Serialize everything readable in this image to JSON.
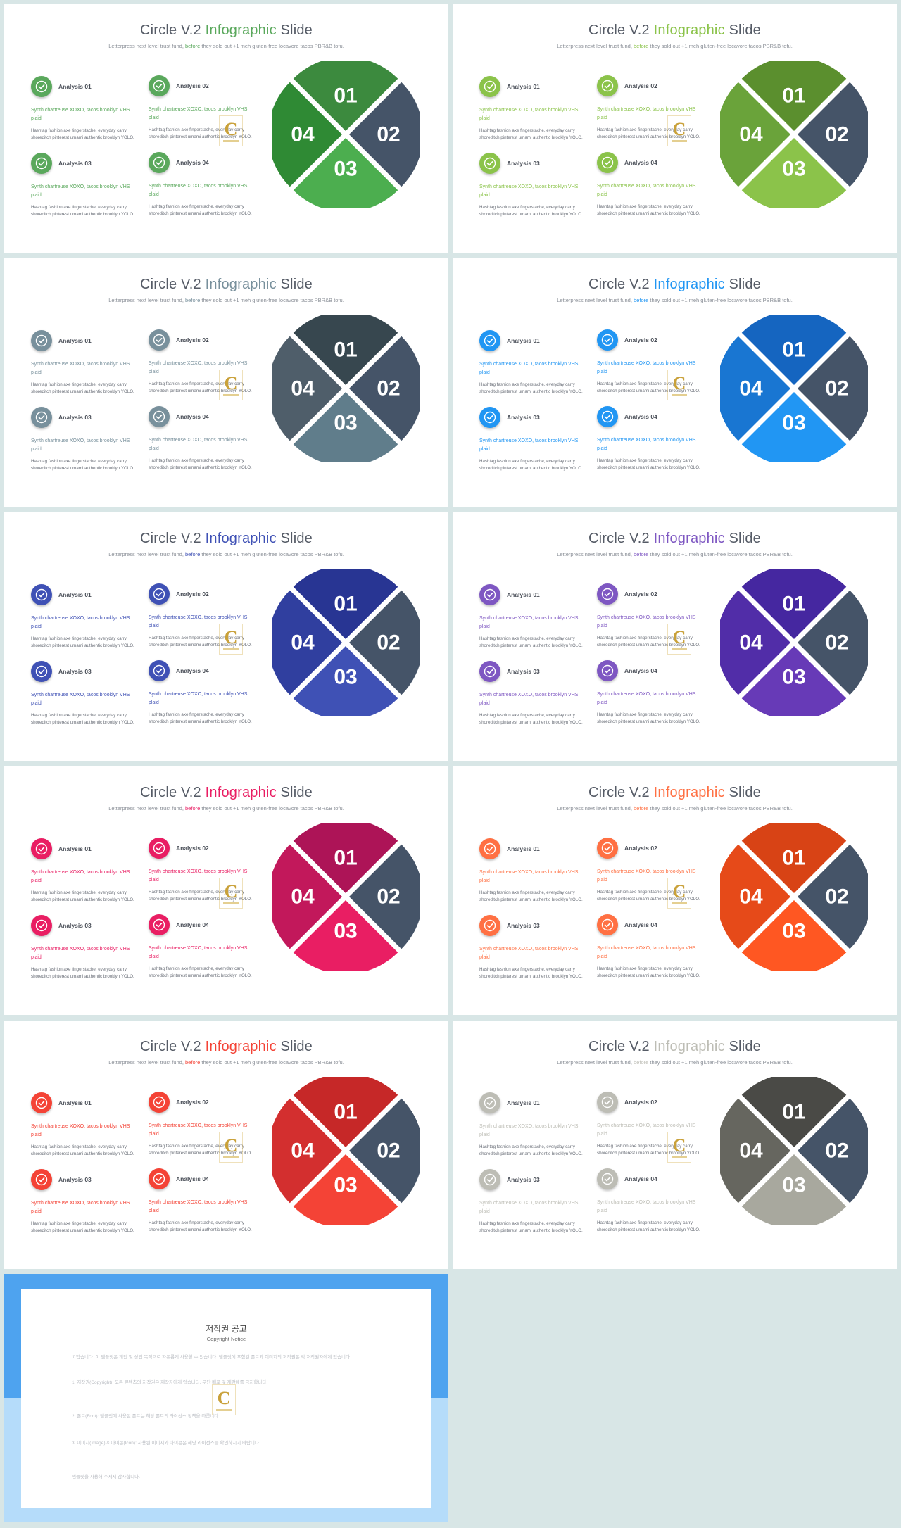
{
  "slide_template": {
    "title_pre": "Circle V.2 ",
    "title_accent": "Infographic",
    "title_post": " Slide",
    "subtitle_pre": "Letterpress next level trust fund, ",
    "subtitle_accent": "before",
    "subtitle_post": " they sold out +1 meh gluten-free locavore tacos PBR&B tofu.",
    "items": [
      {
        "title": "Analysis 01",
        "accent": "Synth chartreuse XOXO, tacos brooklyn VHS plaid",
        "body": "Hashtag fashion axe fingerstache, everyday carry shoreditch pinterest umami authentic brooklyn YOLO."
      },
      {
        "title": "Analysis 02",
        "accent": "Synth chartreuse XOXO, tacos brooklyn VHS plaid",
        "body": "Hashtag fashion axe fingerstache, everyday carry shoreditch pinterest umami authentic brooklyn YOLO."
      },
      {
        "title": "Analysis 03",
        "accent": "Synth chartreuse XOXO, tacos brooklyn VHS plaid",
        "body": "Hashtag fashion axe fingerstache, everyday carry shoreditch pinterest umami authentic brooklyn YOLO."
      },
      {
        "title": "Analysis 04",
        "accent": "Synth chartreuse XOXO, tacos brooklyn VHS plaid",
        "body": "Hashtag fashion axe fingerstache, everyday carry shoreditch pinterest umami authentic brooklyn YOLO."
      }
    ],
    "segment_labels": [
      "01",
      "02",
      "03",
      "04"
    ],
    "icon": "check-circle-icon",
    "logo": "gold-c-logo"
  },
  "slides": [
    {
      "accent": "#5aa85c",
      "seg_top": "#3c8a3e",
      "seg_right": "#455468",
      "seg_bottom": "#4cae4f",
      "seg_left": "#2f8a34"
    },
    {
      "accent": "#8bc34a",
      "seg_top": "#5b8f2e",
      "seg_right": "#455468",
      "seg_bottom": "#8bc34a",
      "seg_left": "#6aa33a"
    },
    {
      "accent": "#78909c",
      "seg_top": "#37474f",
      "seg_right": "#455468",
      "seg_bottom": "#607d8b",
      "seg_left": "#4f5e6a"
    },
    {
      "accent": "#2196f3",
      "seg_top": "#1565c0",
      "seg_right": "#455468",
      "seg_bottom": "#2196f3",
      "seg_left": "#1976d2"
    },
    {
      "accent": "#3f51b5",
      "seg_top": "#283593",
      "seg_right": "#455468",
      "seg_bottom": "#3f51b5",
      "seg_left": "#303f9f"
    },
    {
      "accent": "#7e57c2",
      "seg_top": "#4527a0",
      "seg_right": "#455468",
      "seg_bottom": "#673ab7",
      "seg_left": "#512da8"
    },
    {
      "accent": "#e91e63",
      "seg_top": "#ad1457",
      "seg_right": "#455468",
      "seg_bottom": "#e91e63",
      "seg_left": "#c2185b"
    },
    {
      "accent": "#ff7043",
      "seg_top": "#d84315",
      "seg_right": "#455468",
      "seg_bottom": "#ff5722",
      "seg_left": "#e64a19"
    },
    {
      "accent": "#f44336",
      "seg_top": "#c62828",
      "seg_right": "#455468",
      "seg_bottom": "#f44336",
      "seg_left": "#d32f2f"
    },
    {
      "accent": "#bdbdb5",
      "seg_top": "#4a4a46",
      "seg_right": "#455468",
      "seg_bottom": "#a8a89e",
      "seg_left": "#66665f"
    }
  ],
  "notice": {
    "title": "저작권 공고",
    "subtitle": "Copyright Notice",
    "paragraphs": [
      "고맙습니다. 이 템플릿은 개인 및 상업 목적으로 자유롭게 사용할 수 있습니다. 템플릿에 포함된 폰트와 이미지의 저작권은 각 저작권자에게 있습니다.",
      "1. 저작권(Copyright): 모든 콘텐츠의 저작권은 제작자에게 있습니다. 무단 배포 및 재판매를 금지합니다.",
      "2. 폰트(Font): 템플릿에 사용된 폰트는 해당 폰트의 라이선스 정책을 따릅니다.",
      "3. 이미지(Image) & 아이콘(Icon): 사용된 이미지와 아이콘은 해당 라이선스를 확인하시기 바랍니다.",
      "템플릿을 사용해 주셔서 감사합니다."
    ]
  }
}
